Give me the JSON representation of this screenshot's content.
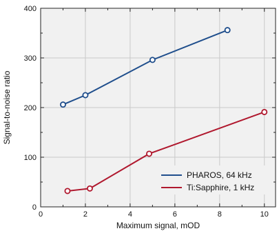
{
  "chart_data": {
    "type": "line",
    "xlabel": "Maximum signal, mOD",
    "ylabel": "Signal-to-noise ratio",
    "xlim": [
      0,
      10.5
    ],
    "ylim": [
      0,
      400
    ],
    "xticks": [
      0,
      2,
      4,
      6,
      8,
      10
    ],
    "yticks": [
      0,
      100,
      200,
      300,
      400
    ],
    "grid": true,
    "legend_position": "bottom-right",
    "series": [
      {
        "name": "PHAROS, 64 kHz",
        "color": "#1f4e8c",
        "x": [
          1.0,
          2.0,
          5.0,
          8.35
        ],
        "y": [
          206,
          225,
          296,
          356
        ]
      },
      {
        "name": "Ti:Sapphire, 1 kHz",
        "color": "#b0182e",
        "x": [
          1.2,
          2.2,
          4.85,
          10.0
        ],
        "y": [
          32,
          37,
          107,
          191
        ]
      }
    ]
  }
}
